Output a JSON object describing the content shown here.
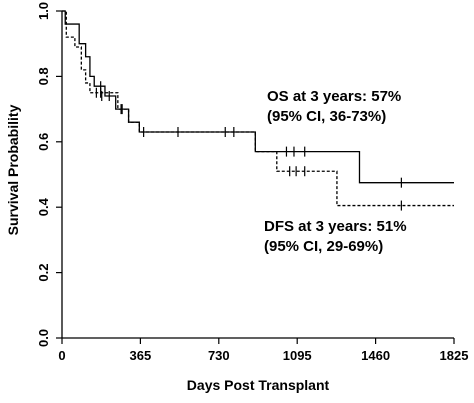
{
  "chart_data": {
    "type": "line",
    "subtype": "kaplan-meier-step",
    "title": "",
    "xlabel": "Days Post Transplant",
    "ylabel": "Survival Probability",
    "xlim": [
      0,
      1825
    ],
    "ylim": [
      0,
      1.0
    ],
    "x_ticks": [
      0,
      365,
      730,
      1095,
      1460,
      1825
    ],
    "x_tick_labels": [
      "0",
      "365",
      "730",
      "1095",
      "1460",
      "1825"
    ],
    "y_ticks": [
      0.0,
      0.2,
      0.4,
      0.6,
      0.8,
      1.0
    ],
    "y_tick_labels": [
      "0.0",
      "0.2",
      "0.4",
      "0.6",
      "0.8",
      "1.0"
    ],
    "grid": false,
    "series": [
      {
        "name": "OS",
        "line_style": "solid",
        "color": "#000000",
        "steps": [
          [
            0,
            1.0
          ],
          [
            15,
            0.96
          ],
          [
            80,
            0.9
          ],
          [
            110,
            0.86
          ],
          [
            130,
            0.8
          ],
          [
            150,
            0.77
          ],
          [
            200,
            0.74
          ],
          [
            250,
            0.7
          ],
          [
            310,
            0.66
          ],
          [
            360,
            0.63
          ],
          [
            900,
            0.57
          ],
          [
            1385,
            0.475
          ],
          [
            1825,
            0.475
          ]
        ],
        "censored": [
          [
            180,
            0.77
          ],
          [
            185,
            0.74
          ],
          [
            220,
            0.74
          ],
          [
            280,
            0.7
          ],
          [
            380,
            0.63
          ],
          [
            540,
            0.63
          ],
          [
            760,
            0.63
          ],
          [
            800,
            0.63
          ],
          [
            1045,
            0.57
          ],
          [
            1080,
            0.57
          ],
          [
            1130,
            0.57
          ],
          [
            1580,
            0.475
          ]
        ]
      },
      {
        "name": "DFS",
        "line_style": "dashed",
        "color": "#000000",
        "steps": [
          [
            0,
            1.0
          ],
          [
            20,
            0.92
          ],
          [
            60,
            0.89
          ],
          [
            90,
            0.82
          ],
          [
            110,
            0.78
          ],
          [
            130,
            0.75
          ],
          [
            260,
            0.7
          ],
          [
            310,
            0.66
          ],
          [
            360,
            0.63
          ],
          [
            900,
            0.57
          ],
          [
            1000,
            0.51
          ],
          [
            1280,
            0.405
          ],
          [
            1825,
            0.405
          ]
        ],
        "censored": [
          [
            160,
            0.75
          ],
          [
            180,
            0.75
          ],
          [
            275,
            0.7
          ],
          [
            1060,
            0.51
          ],
          [
            1090,
            0.51
          ],
          [
            1130,
            0.51
          ],
          [
            1580,
            0.405
          ]
        ]
      }
    ],
    "annotations": {
      "os_line1": "OS at 3 years: 57%",
      "os_line2": "(95% CI, 36-73%)",
      "dfs_line1": "DFS at 3 years: 51%",
      "dfs_line2": "(95% CI, 29-69%)"
    }
  }
}
